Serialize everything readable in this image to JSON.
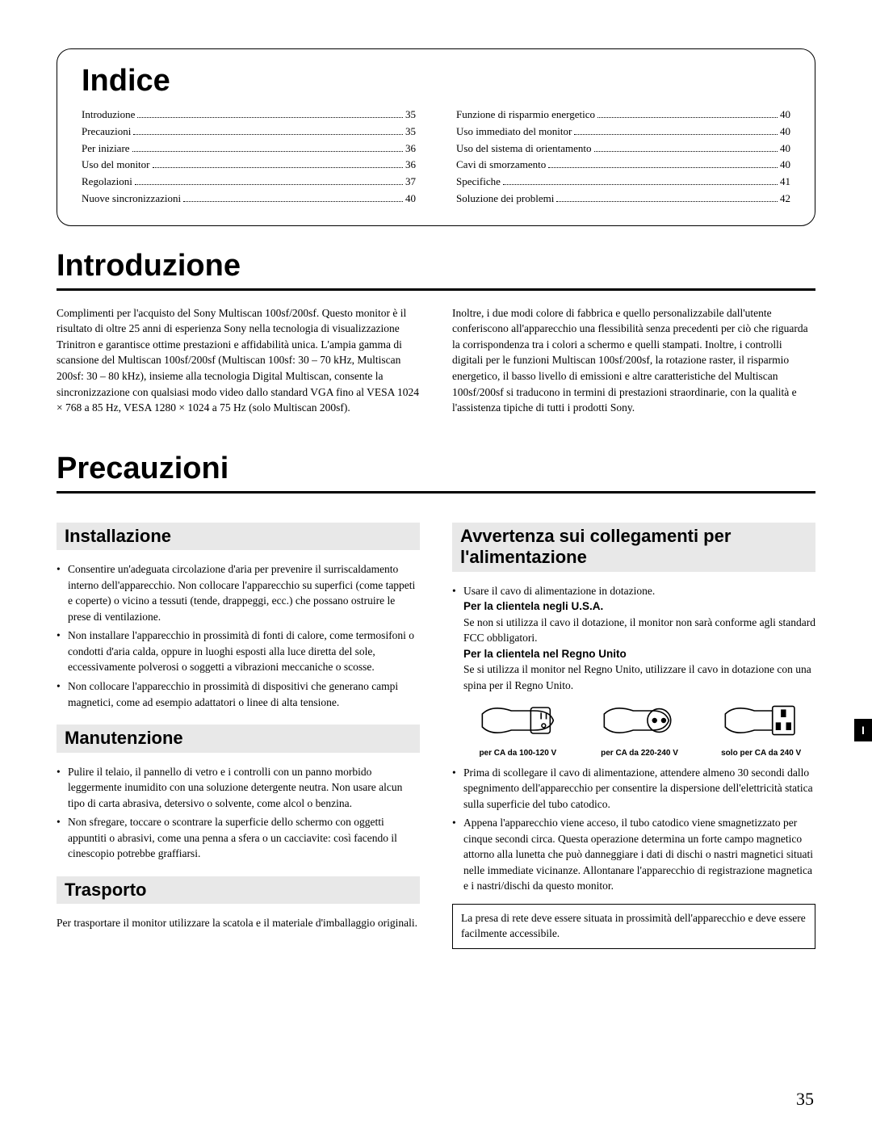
{
  "indice": {
    "title": "Indice",
    "left": [
      {
        "label": "Introduzione",
        "page": "35"
      },
      {
        "label": "Precauzioni",
        "page": "35"
      },
      {
        "label": "Per iniziare",
        "page": "36"
      },
      {
        "label": "Uso del monitor",
        "page": "36"
      },
      {
        "label": "Regolazioni",
        "page": "37"
      },
      {
        "label": "Nuove sincronizzazioni",
        "page": "40"
      }
    ],
    "right": [
      {
        "label": "Funzione di risparmio energetico",
        "page": "40"
      },
      {
        "label": "Uso immediato del monitor",
        "page": "40"
      },
      {
        "label": "Uso del sistema di orientamento",
        "page": "40"
      },
      {
        "label": "Cavi di smorzamento",
        "page": "40"
      },
      {
        "label": "Specifiche",
        "page": "41"
      },
      {
        "label": "Soluzione dei problemi",
        "page": "42"
      }
    ]
  },
  "introduzione": {
    "title": "Introduzione",
    "p1": "Complimenti per l'acquisto del Sony Multiscan 100sf/200sf. Questo monitor è il risultato di oltre 25 anni di esperienza Sony nella tecnologia di visualizzazione Trinitron e garantisce ottime prestazioni e affidabilità unica. L'ampia gamma di scansione del Multiscan 100sf/200sf (Multiscan 100sf: 30 – 70 kHz, Multiscan 200sf: 30 – 80 kHz), insieme alla tecnologia Digital Multiscan, consente la sincronizzazione con qualsiasi modo video dallo standard VGA fino al VESA 1024 × 768 a 85 Hz, VESA 1280 × 1024 a 75 Hz (solo Multiscan 200sf).",
    "p2": " Inoltre, i due modi colore di fabbrica e quello personalizzabile dall'utente conferiscono all'apparecchio una flessibilità senza precedenti per ciò che riguarda la corrispondenza tra i colori a schermo e quelli stampati. Inoltre, i controlli digitali per le funzioni Multiscan 100sf/200sf, la rotazione raster, il risparmio energetico, il basso livello di emissioni e altre caratteristiche del Multiscan 100sf/200sf si traducono in termini di prestazioni straordinarie, con la qualità e l'assistenza tipiche di tutti i prodotti Sony."
  },
  "precauzioni": {
    "title": "Precauzioni",
    "installazione": {
      "title": "Installazione",
      "items": [
        "Consentire un'adeguata circolazione d'aria per prevenire il surriscaldamento interno dell'apparecchio. Non collocare l'apparecchio su superfici (come tappeti e coperte) o vicino a tessuti (tende, drappeggi, ecc.) che possano ostruire le prese di ventilazione.",
        "Non installare l'apparecchio in prossimità di fonti di calore, come termosifoni o condotti d'aria calda, oppure in luoghi esposti alla luce diretta del sole, eccessivamente polverosi o soggetti a vibrazioni meccaniche o scosse.",
        "Non collocare l'apparecchio in prossimità di dispositivi che generano campi magnetici, come ad esempio adattatori o linee di alta tensione."
      ]
    },
    "manutenzione": {
      "title": "Manutenzione",
      "items": [
        "Pulire il telaio, il pannello di vetro e i controlli con un panno morbido leggermente inumidito con una soluzione detergente neutra. Non usare alcun tipo di carta abrasiva, detersivo o solvente, come alcol o benzina.",
        "Non sfregare, toccare o scontrare la superficie dello schermo con oggetti appuntiti o abrasivi, come una penna a sfera o un cacciavite: così facendo il cinescopio potrebbe graffiarsi."
      ]
    },
    "trasporto": {
      "title": "Trasporto",
      "text": "Per trasportare il monitor utilizzare la scatola e il materiale d'imballaggio originali."
    },
    "avvertenza": {
      "title": "Avvertenza sui collegamenti per l'alimentazione",
      "b1_intro": "Usare il cavo di alimentazione in dotazione.",
      "b1_usa_head": "Per la clientela negli U.S.A.",
      "b1_usa": "Se non si utilizza il cavo il dotazione, il monitor non sarà conforme agli standard FCC obbligatori.",
      "b1_uk_head": "Per la clientela nel Regno Unito",
      "b1_uk": "Se si utilizza il monitor nel Regno Unito, utilizzare il cavo in dotazione con una spina per il Regno Unito.",
      "plugs": [
        {
          "label": "per CA da 100-120 V"
        },
        {
          "label": "per CA da 220-240 V"
        },
        {
          "label": "solo per CA da 240 V"
        }
      ],
      "b2": "Prima di scollegare il cavo di alimentazione, attendere almeno 30 secondi dallo spegnimento dell'apparecchio per consentire la dispersione dell'elettricità statica sulla superficie del tubo catodico.",
      "b3": "Appena l'apparecchio viene acceso, il tubo catodico viene smagnetizzato per cinque secondi circa. Questa operazione determina un forte campo magnetico attorno alla lunetta che può danneggiare i dati di dischi o nastri magnetici situati nelle immediate vicinanze. Allontanare l'apparecchio di registrazione magnetica e i nastri/dischi da questo monitor.",
      "notice": "La presa di rete deve essere situata in prossimità dell'apparecchio e deve essere facilmente accessibile."
    }
  },
  "page_number": "35",
  "side_tab": "I"
}
